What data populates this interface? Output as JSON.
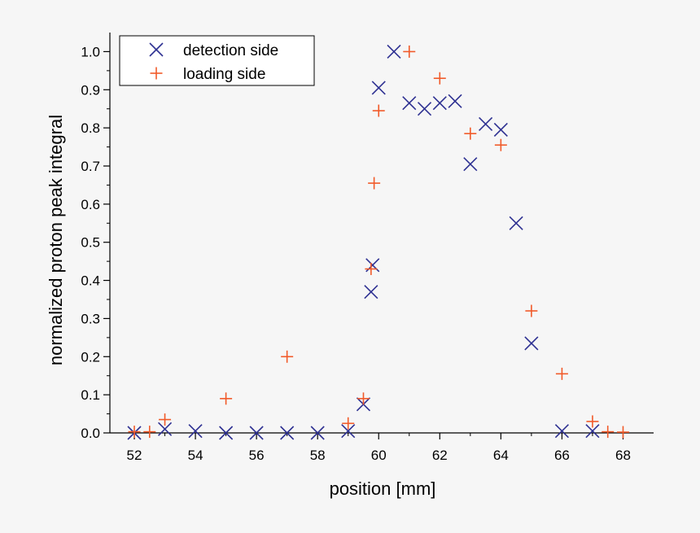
{
  "chart_data": {
    "type": "scatter",
    "xlabel": "position [mm]",
    "ylabel": "normalized proton peak integral",
    "xlim": [
      51.2,
      69.0
    ],
    "ylim": [
      0.0,
      1.05
    ],
    "x_ticks": [
      "52",
      "54",
      "56",
      "58",
      "60",
      "62",
      "64",
      "66",
      "68"
    ],
    "y_ticks": [
      "0.0",
      "0.1",
      "0.2",
      "0.3",
      "0.4",
      "0.5",
      "0.6",
      "0.7",
      "0.8",
      "0.9",
      "1.0"
    ],
    "grid": false,
    "legend_position": "top-left",
    "series": [
      {
        "name": "detection side",
        "marker": "x",
        "color": "#2e3192",
        "points": [
          [
            52,
            0.0
          ],
          [
            53,
            0.01
          ],
          [
            54,
            0.005
          ],
          [
            55,
            0.0
          ],
          [
            56,
            0.0
          ],
          [
            57,
            0.0
          ],
          [
            58,
            0.0
          ],
          [
            59,
            0.005
          ],
          [
            59.5,
            0.075
          ],
          [
            59.75,
            0.37
          ],
          [
            59.8,
            0.44
          ],
          [
            60,
            0.905
          ],
          [
            60.5,
            1.0
          ],
          [
            61,
            0.865
          ],
          [
            61.5,
            0.85
          ],
          [
            62,
            0.865
          ],
          [
            62.5,
            0.87
          ],
          [
            63,
            0.705
          ],
          [
            63.5,
            0.81
          ],
          [
            64,
            0.795
          ],
          [
            64.5,
            0.55
          ],
          [
            65,
            0.235
          ],
          [
            66,
            0.005
          ],
          [
            67,
            0.005
          ]
        ]
      },
      {
        "name": "loading side",
        "marker": "+",
        "color": "#f15a29",
        "points": [
          [
            52,
            0.003
          ],
          [
            52.5,
            0.003
          ],
          [
            53,
            0.035
          ],
          [
            55,
            0.09
          ],
          [
            57,
            0.2
          ],
          [
            59,
            0.025
          ],
          [
            59.5,
            0.09
          ],
          [
            59.75,
            0.43
          ],
          [
            59.85,
            0.655
          ],
          [
            60,
            0.845
          ],
          [
            61,
            1.0
          ],
          [
            62,
            0.93
          ],
          [
            63,
            0.785
          ],
          [
            64,
            0.755
          ],
          [
            65,
            0.32
          ],
          [
            66,
            0.155
          ],
          [
            67,
            0.03
          ],
          [
            67.5,
            0.003
          ],
          [
            68,
            0.002
          ]
        ]
      }
    ]
  }
}
